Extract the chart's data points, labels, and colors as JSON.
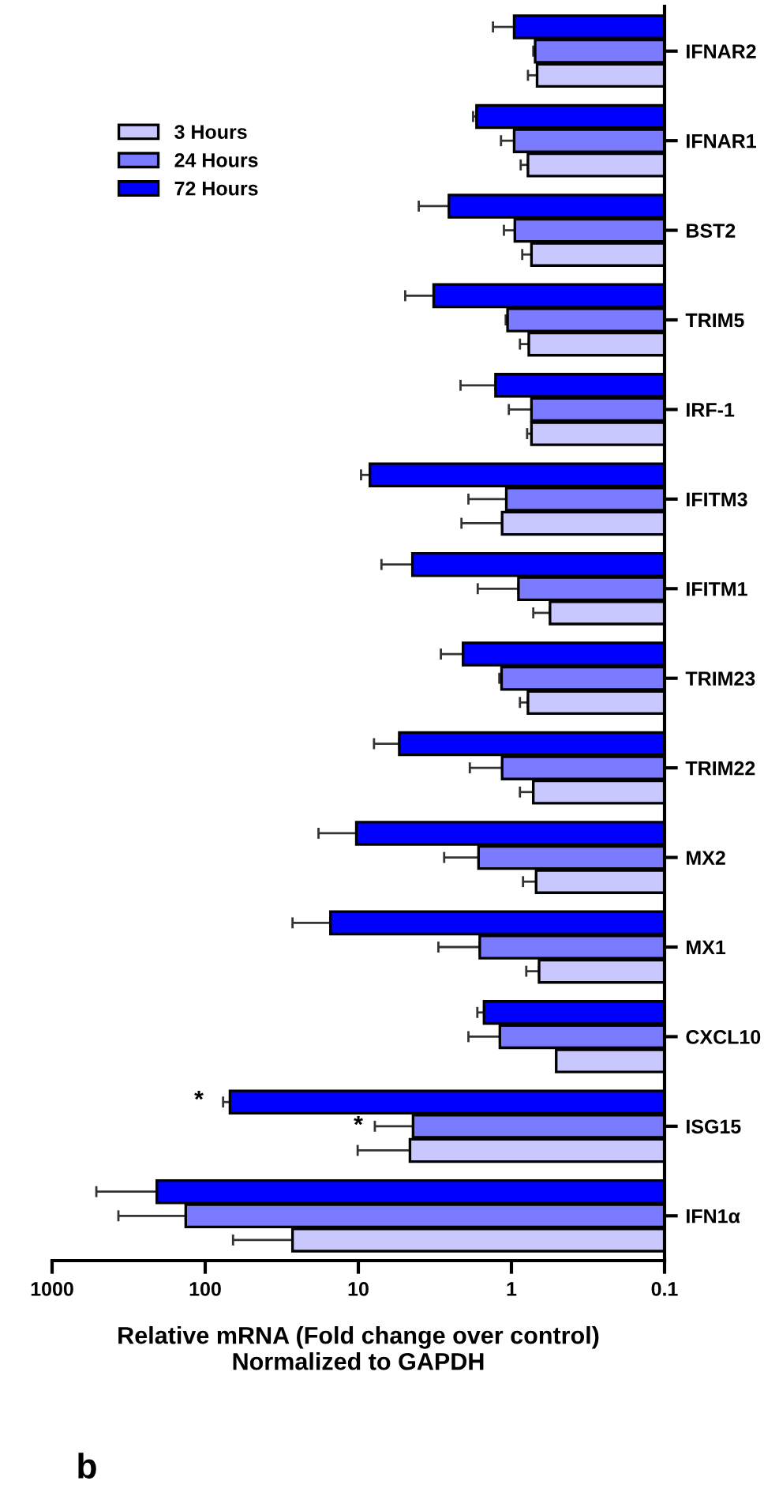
{
  "chart_data": {
    "type": "bar",
    "orientation": "horizontal",
    "log": "x",
    "xlabel": "Relative mRNA (Fold change over control)\nNormalized to GAPDH",
    "categories": [
      "IFNAR2",
      "IFNAR1",
      "BST2",
      "TRIM5",
      "IRF-1",
      "IFITM3",
      "IFITM1",
      "TRIM23",
      "TRIM22",
      "MX2",
      "MX1",
      "CXCL10",
      "ISG15",
      "IFN1α"
    ],
    "series": [
      {
        "name": "3 Hours",
        "color": "#c8c8ff",
        "values": [
          0.68,
          0.78,
          0.74,
          0.77,
          0.74,
          1.15,
          0.56,
          0.78,
          0.72,
          0.69,
          0.66,
          0.51,
          4.6,
          26.9
        ],
        "errors": [
          [
            0.68,
            0.78
          ],
          [
            0.78,
            0.87
          ],
          [
            0.74,
            0.85
          ],
          [
            0.77,
            0.88
          ],
          [
            0.74,
            0.79
          ],
          [
            1.15,
            2.12
          ],
          [
            0.56,
            0.72
          ],
          [
            0.78,
            0.88
          ],
          [
            0.72,
            0.88
          ],
          [
            0.69,
            0.84
          ],
          [
            0.66,
            0.8
          ],
          null,
          [
            4.6,
            10.1
          ],
          [
            26.9,
            65.8
          ]
        ]
      },
      {
        "name": "24 Hours",
        "color": "#7b7bff",
        "values": [
          0.7,
          0.96,
          0.95,
          1.06,
          0.74,
          1.08,
          0.9,
          1.16,
          1.15,
          1.64,
          1.61,
          1.19,
          4.39,
          134
        ],
        "errors": [
          [
            0.7,
            0.72
          ],
          [
            0.96,
            1.17
          ],
          [
            0.95,
            1.12
          ],
          [
            1.06,
            1.09
          ],
          [
            0.74,
            1.04
          ],
          [
            1.08,
            1.91
          ],
          [
            0.9,
            1.66
          ],
          [
            1.16,
            1.2
          ],
          [
            1.15,
            1.87
          ],
          [
            1.64,
            2.75
          ],
          [
            1.61,
            3.0
          ],
          [
            1.19,
            1.91
          ],
          [
            4.39,
            7.8
          ],
          [
            134,
            369
          ]
        ]
      },
      {
        "name": "72 Hours",
        "color": "#0000ff",
        "values": [
          0.96,
          1.69,
          2.56,
          3.22,
          1.27,
          8.4,
          4.43,
          2.07,
          5.4,
          10.3,
          15.2,
          1.51,
          68.9,
          207
        ],
        "errors": [
          [
            0.96,
            1.32
          ],
          [
            1.69,
            1.78
          ],
          [
            2.56,
            4.03
          ],
          [
            3.22,
            4.94
          ],
          [
            1.27,
            2.15
          ],
          [
            8.4,
            9.6
          ],
          [
            4.43,
            7.06
          ],
          [
            2.07,
            2.89
          ],
          [
            5.4,
            7.9
          ],
          [
            10.3,
            18.2
          ],
          [
            15.2,
            26.9
          ],
          [
            1.51,
            1.67
          ],
          [
            68.9,
            76.4
          ],
          [
            207,
            514
          ]
        ]
      }
    ],
    "xlim": [
      1000,
      0.1
    ],
    "xticks": [
      1000,
      100,
      10,
      1,
      0.1
    ],
    "legend": "top left",
    "grid": false,
    "annotations": [
      "*",
      "*",
      "b"
    ]
  }
}
